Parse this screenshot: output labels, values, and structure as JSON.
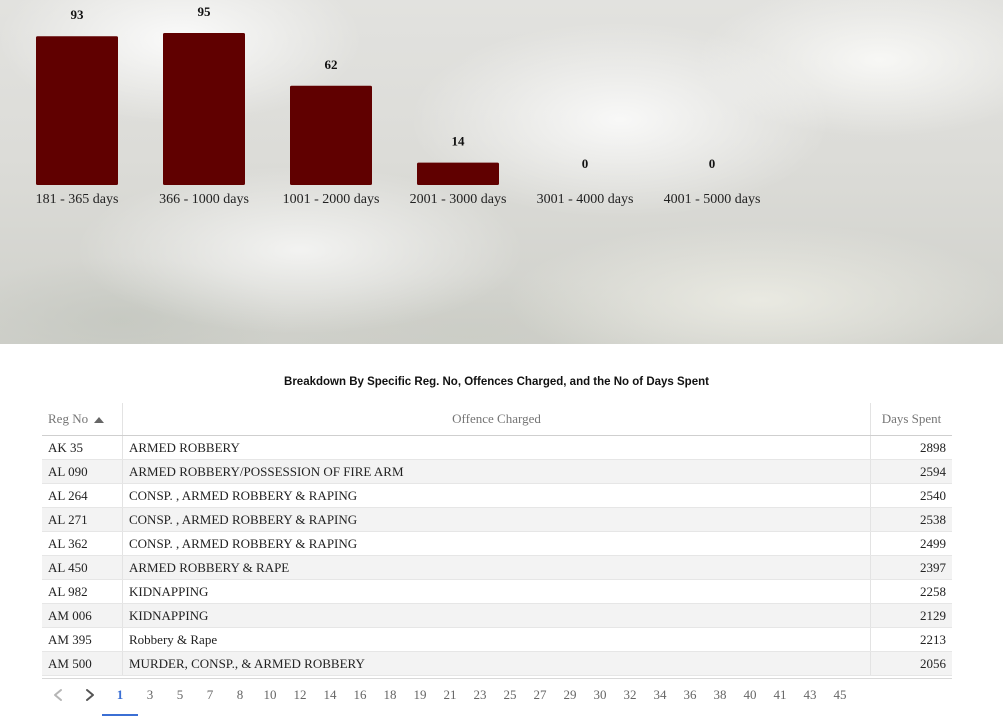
{
  "chart_data": {
    "type": "bar",
    "categories": [
      "181 - 365 days",
      "366 - 1000 days",
      "1001 - 2000 days",
      "2001 - 3000 days",
      "3001 - 4000 days",
      "4001 - 5000 days"
    ],
    "values": [
      93,
      95,
      62,
      14,
      0,
      0
    ],
    "bar_color": "#600000",
    "grid": false
  },
  "table": {
    "title": "Breakdown By Specific Reg. No, Offences Charged, and the No of Days Spent",
    "columns": [
      "Reg No",
      "Offence Charged",
      "Days Spent"
    ],
    "sorted_by": "Reg No",
    "rows": [
      {
        "reg": "AK 35",
        "offence": "ARMED ROBBERY",
        "days": "2898"
      },
      {
        "reg": "AL 090",
        "offence": "ARMED ROBBERY/POSSESSION OF FIRE ARM",
        "days": "2594"
      },
      {
        "reg": "AL 264",
        "offence": "CONSP. , ARMED ROBBERY & RAPING",
        "days": "2540"
      },
      {
        "reg": "AL 271",
        "offence": "CONSP. , ARMED ROBBERY & RAPING",
        "days": "2538"
      },
      {
        "reg": "AL 362",
        "offence": "CONSP. , ARMED ROBBERY & RAPING",
        "days": "2499"
      },
      {
        "reg": "AL 450",
        "offence": "ARMED ROBBERY & RAPE",
        "days": "2397"
      },
      {
        "reg": "AL 982",
        "offence": "KIDNAPPING",
        "days": "2258"
      },
      {
        "reg": "AM 006",
        "offence": "KIDNAPPING",
        "days": "2129"
      },
      {
        "reg": "AM 395",
        "offence": "Robbery & Rape",
        "days": "2213"
      },
      {
        "reg": "AM 500",
        "offence": "MURDER, CONSP., & ARMED ROBBERY",
        "days": "2056"
      }
    ]
  },
  "pagination": {
    "prev_icon": "chevron-left-icon",
    "next_icon": "chevron-right-icon",
    "current": "1",
    "pages": [
      "1",
      "3",
      "5",
      "7",
      "8",
      "10",
      "12",
      "14",
      "16",
      "18",
      "19",
      "21",
      "23",
      "25",
      "27",
      "29",
      "30",
      "32",
      "34",
      "36",
      "38",
      "40",
      "41",
      "43",
      "45"
    ],
    "active_color": "#3b6fd4"
  }
}
